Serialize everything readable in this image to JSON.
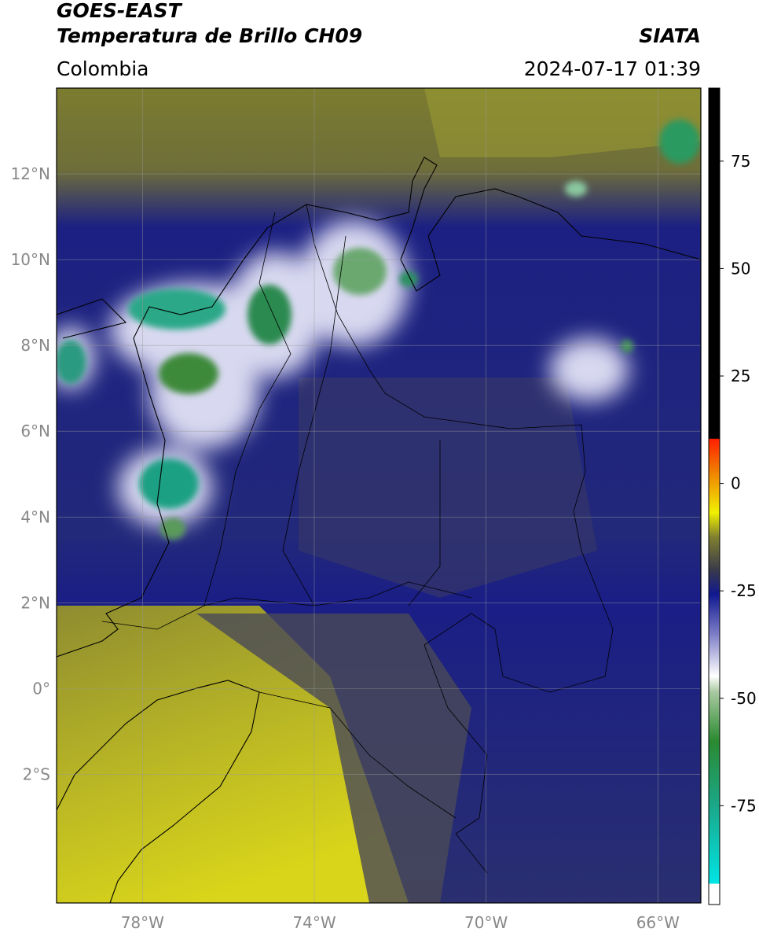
{
  "header": {
    "title": "GOES-EAST",
    "subtitle": "Temperatura de Brillo CH09",
    "source": "SIATA",
    "region": "Colombia",
    "datetime": "2024-07-17 01:39"
  },
  "map": {
    "lonlim": [
      -80,
      -65
    ],
    "latlim": [
      -5,
      14
    ],
    "lon_ticks": [
      {
        "value": -78,
        "label": "78°W"
      },
      {
        "value": -74,
        "label": "74°W"
      },
      {
        "value": -70,
        "label": "70°W"
      },
      {
        "value": -66,
        "label": "66°W"
      }
    ],
    "lat_ticks": [
      {
        "value": 12,
        "label": "12°N"
      },
      {
        "value": 10,
        "label": "10°N"
      },
      {
        "value": 8,
        "label": "8°N"
      },
      {
        "value": 6,
        "label": "6°N"
      },
      {
        "value": 4,
        "label": "4°N"
      },
      {
        "value": 2,
        "label": "2°N"
      },
      {
        "value": 0,
        "label": "0°"
      },
      {
        "value": -2,
        "label": "2°S"
      }
    ]
  },
  "colorbar": {
    "clim": [
      -98,
      92
    ],
    "ticks": [
      75,
      50,
      25,
      0,
      -25,
      -50,
      -75
    ]
  }
}
